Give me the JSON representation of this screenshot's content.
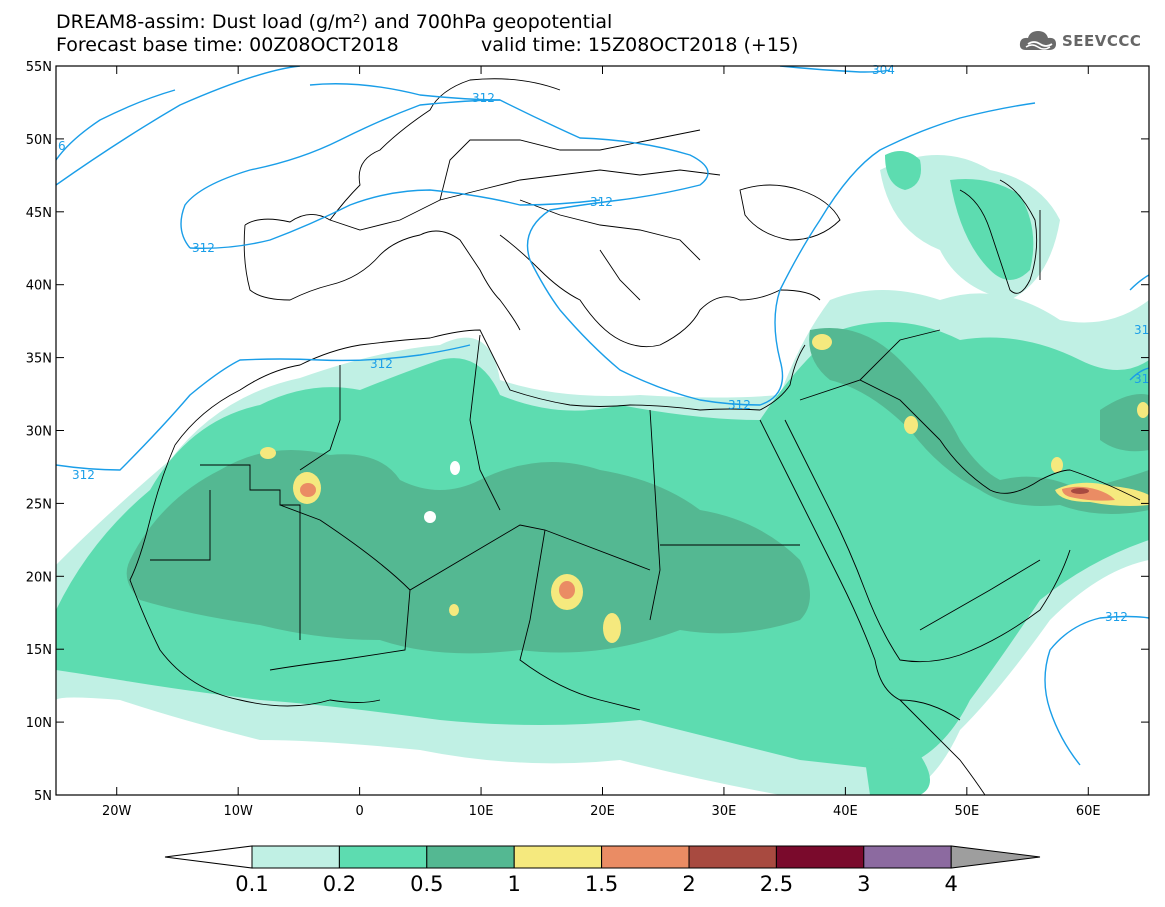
{
  "title_line1": "DREAM8-assim: Dust load (g/m²) and 700hPa geopotential",
  "forecast_base": "Forecast base time: 00Z08OCT2018",
  "valid_time": "valid time: 15Z08OCT2018 (+15)",
  "logo_text": "SEEVCCC",
  "logo_icon": "cloud-icon",
  "lat_labels": [
    "55N",
    "50N",
    "45N",
    "40N",
    "35N",
    "30N",
    "25N",
    "20N",
    "15N",
    "10N",
    "5N"
  ],
  "lon_labels": [
    "20W",
    "10W",
    "0",
    "10E",
    "20E",
    "30E",
    "40E",
    "50E",
    "60E"
  ],
  "contour_labels": [
    "304",
    "312",
    "312",
    "312",
    "312",
    "312",
    "312",
    "312",
    "312",
    "31",
    "31",
    "6"
  ],
  "colorbar": {
    "ticks": [
      "0.1",
      "0.2",
      "0.5",
      "1",
      "1.5",
      "2",
      "2.5",
      "3",
      "4"
    ],
    "colors": [
      "#c0f0e4",
      "#5ddcb0",
      "#54b892",
      "#f5e97e",
      "#ea8c64",
      "#a84a40",
      "#7a0a2c",
      "#8c6aa0"
    ],
    "under_color": "#ffffff",
    "over_color": "#9e9e9e"
  },
  "map_extent": {
    "lon": [
      -25,
      65
    ],
    "lat": [
      5,
      55
    ]
  },
  "contour_color": "#1a9ee8"
}
